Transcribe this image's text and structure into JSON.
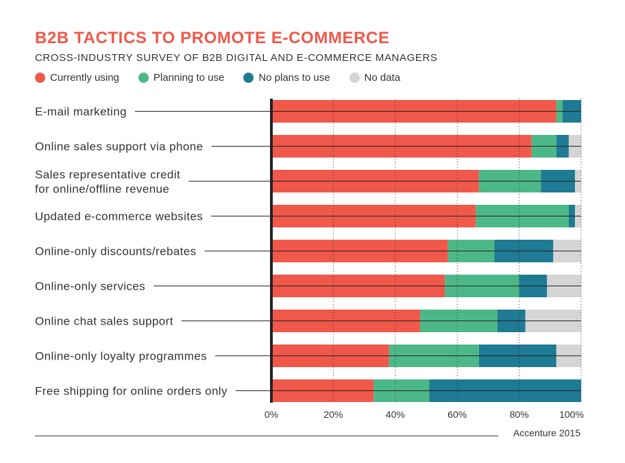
{
  "title": "B2B TACTICS TO PROMOTE E-COMMERCE",
  "subtitle": "CROSS-INDUSTRY SURVEY OF B2B DIGITAL AND E-COMMERCE MANAGERS",
  "source": "Accenture 2015",
  "colors": {
    "title": "#f0584a",
    "currently_using": "#f0584a",
    "planning_to_use": "#4db887",
    "no_plans": "#1f7a93",
    "no_data": "#d5d5d5"
  },
  "chart_data": {
    "type": "bar",
    "orientation": "horizontal",
    "stacked": true,
    "categories": [
      [
        "E-mail marketing"
      ],
      [
        "Online sales support via phone"
      ],
      [
        "Sales representative credit",
        "for online/offline revenue"
      ],
      [
        "Updated e-commerce websites"
      ],
      [
        "Online-only discounts/rebates"
      ],
      [
        "Online-only services"
      ],
      [
        "Online chat sales support"
      ],
      [
        "Online-only loyalty programmes"
      ],
      [
        "Free shipping for online orders only"
      ]
    ],
    "series": [
      {
        "name": "Currently using",
        "color": "#f0584a",
        "values": [
          92,
          84,
          67,
          66,
          57,
          56,
          48,
          38,
          33
        ]
      },
      {
        "name": "Planning to use",
        "color": "#4db887",
        "values": [
          2,
          8,
          20,
          30,
          15,
          24,
          25,
          29,
          18
        ]
      },
      {
        "name": "No plans to use",
        "color": "#1f7a93",
        "values": [
          6,
          4,
          11,
          2,
          19,
          9,
          9,
          25,
          49
        ]
      },
      {
        "name": "No data",
        "color": "#d5d5d5",
        "values": [
          0,
          4,
          2,
          2,
          9,
          11,
          18,
          8,
          0
        ]
      }
    ],
    "xlim": [
      0,
      100
    ],
    "xticks": [
      "0%",
      "20%",
      "40%",
      "60%",
      "80%",
      "100%"
    ],
    "grid": true,
    "legend_position": "top-left"
  }
}
